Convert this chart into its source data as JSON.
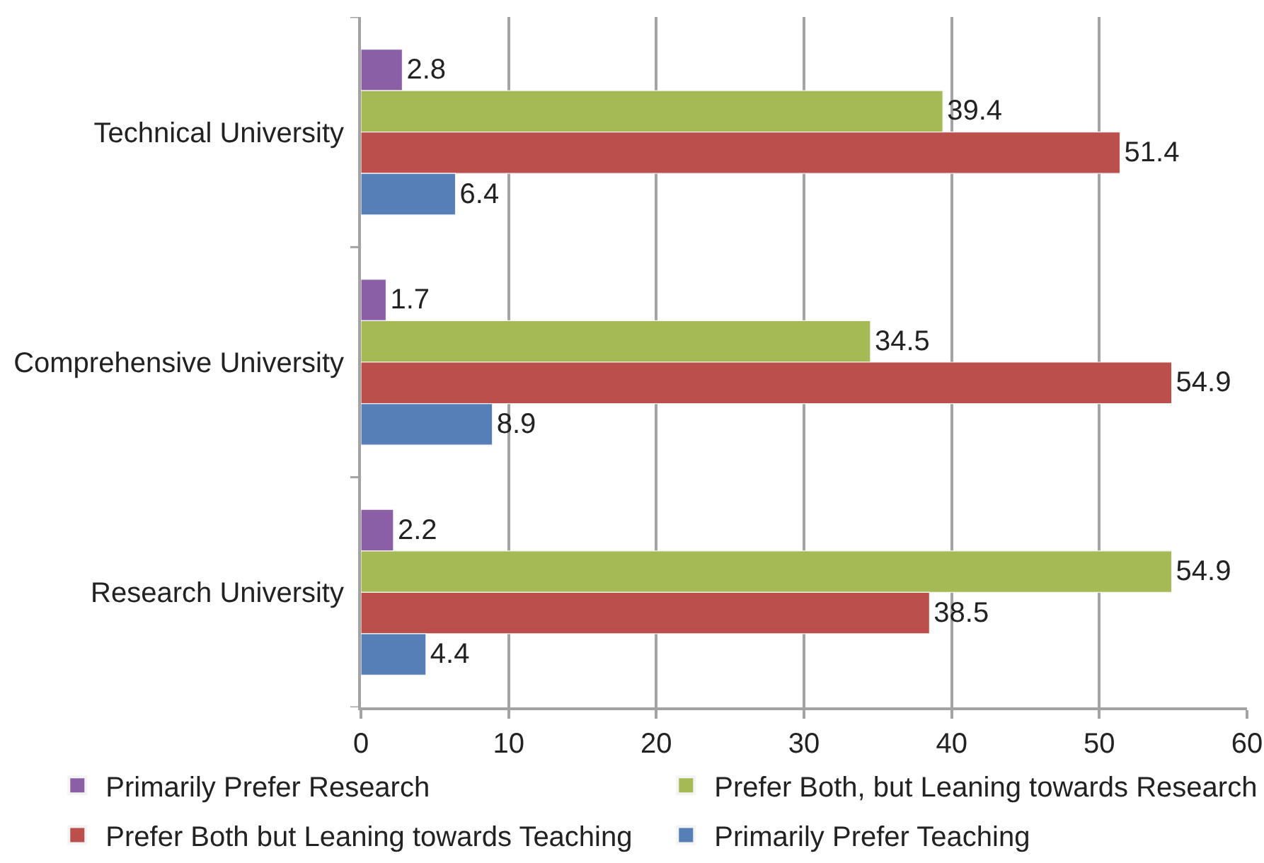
{
  "chart_data": {
    "type": "bar",
    "orientation": "horizontal",
    "categories": [
      "Technical University",
      "Comprehensive University",
      "Research University"
    ],
    "series": [
      {
        "name": "Primarily Prefer Research",
        "color": "#8b5fa6",
        "values": [
          2.8,
          1.7,
          2.2
        ]
      },
      {
        "name": "Prefer Both, but Leaning towards Research",
        "color": "#a5b955",
        "values": [
          39.4,
          34.5,
          54.9
        ]
      },
      {
        "name": "Prefer Both but Leaning towards Teaching",
        "color": "#bb4f4b",
        "values": [
          51.4,
          54.9,
          38.5
        ]
      },
      {
        "name": "Primarily Prefer Teaching",
        "color": "#567fb8",
        "values": [
          6.4,
          8.9,
          4.4
        ]
      }
    ],
    "xlim": [
      0,
      60
    ],
    "xticks": [
      0,
      10,
      20,
      30,
      40,
      50,
      60
    ],
    "grid": "x",
    "legend": "bottom",
    "data_labels": true
  }
}
